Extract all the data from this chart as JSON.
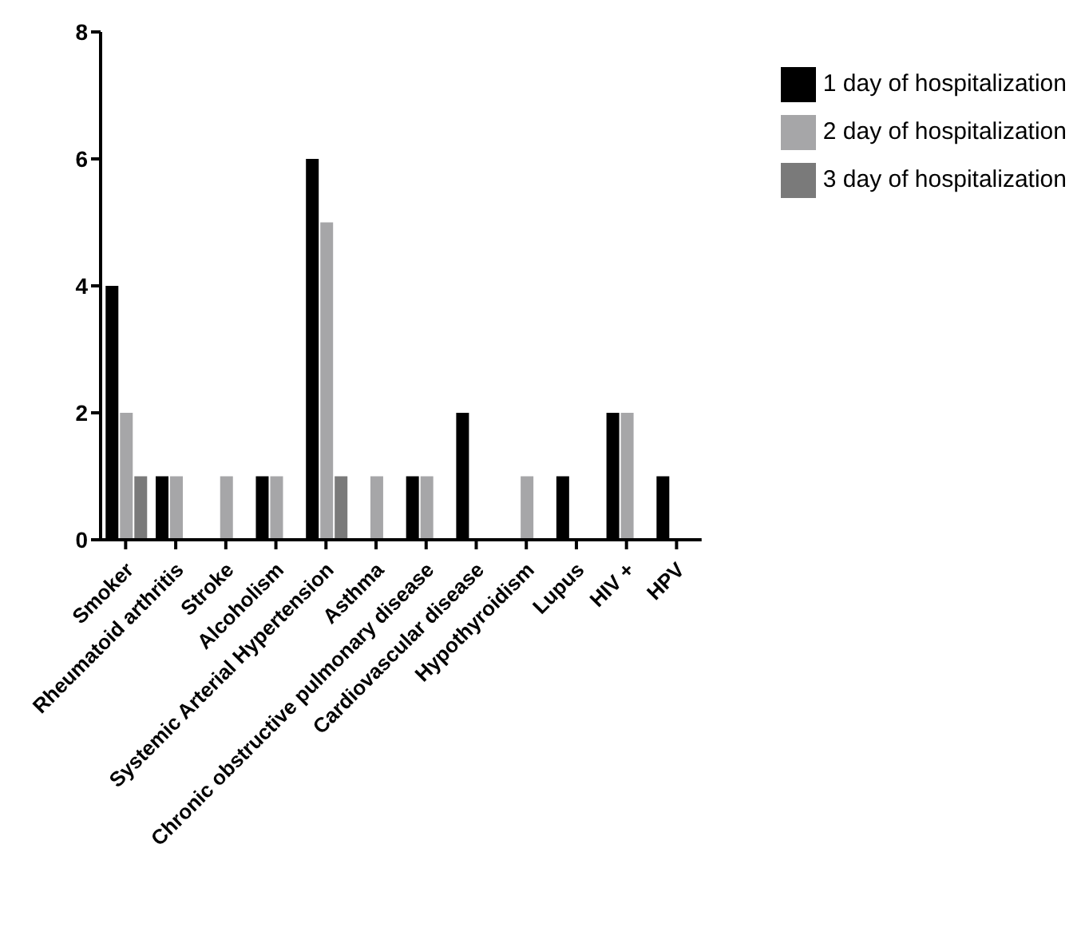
{
  "chart_data": {
    "type": "bar",
    "categories": [
      "Smoker",
      "Rheumatoid arthritis",
      "Stroke",
      "Alcoholism",
      "Systemic Arterial Hypertension",
      "Asthma",
      "Chronic obstructive pulmonary disease",
      "Cardiovascular disease",
      "Hypothyroidism",
      "Lupus",
      "HIV +",
      "HPV"
    ],
    "series": [
      {
        "name": "1 day of hospitalization",
        "color": "#000000",
        "values": [
          4,
          1,
          0,
          1,
          6,
          0,
          1,
          2,
          0,
          1,
          2,
          1
        ]
      },
      {
        "name": "2 day of hospitalization",
        "color": "#a6a6a8",
        "values": [
          2,
          1,
          1,
          1,
          5,
          1,
          1,
          0,
          1,
          0,
          2,
          0
        ]
      },
      {
        "name": "3 day of hospitalization",
        "color": "#7a7a7a",
        "values": [
          1,
          0,
          0,
          0,
          1,
          0,
          0,
          0,
          0,
          0,
          0,
          0
        ]
      }
    ],
    "ylim": [
      0,
      8
    ],
    "yticks": [
      0,
      2,
      4,
      6,
      8
    ],
    "grid": false,
    "legend": "top right"
  }
}
